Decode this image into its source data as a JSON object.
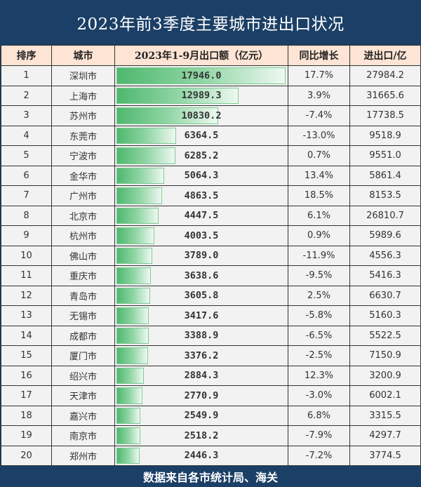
{
  "title": "2023年前3季度主要城市进出口状况",
  "footer": "数据来自各市统计局、海关",
  "colors": {
    "title_bg": "#1b3f66",
    "header_bg": "#fde4d4",
    "bar": "#4fb86e"
  },
  "chart_data": {
    "type": "table",
    "headers": [
      "排序",
      "城市",
      "2023年1-9月出口额（亿元）",
      "同比增长",
      "进出口/亿"
    ],
    "rows": [
      [
        "1",
        "深圳市",
        17946.0,
        "17.7%",
        "27984.2"
      ],
      [
        "2",
        "上海市",
        12989.3,
        "3.9%",
        "31665.6"
      ],
      [
        "3",
        "苏州市",
        10830.2,
        "-7.4%",
        "17738.5"
      ],
      [
        "4",
        "东莞市",
        6364.5,
        "-13.0%",
        "9518.9"
      ],
      [
        "5",
        "宁波市",
        6285.2,
        "0.7%",
        "9551.0"
      ],
      [
        "6",
        "金华市",
        5064.3,
        "13.4%",
        "5861.4"
      ],
      [
        "7",
        "广州市",
        4863.5,
        "18.5%",
        "8153.5"
      ],
      [
        "8",
        "北京市",
        4447.5,
        "6.1%",
        "26810.7"
      ],
      [
        "9",
        "杭州市",
        4003.5,
        "0.9%",
        "5989.6"
      ],
      [
        "10",
        "佛山市",
        3789.0,
        "-11.9%",
        "4556.3"
      ],
      [
        "11",
        "重庆市",
        3638.6,
        "-9.5%",
        "5416.3"
      ],
      [
        "12",
        "青岛市",
        3605.8,
        "2.5%",
        "6630.7"
      ],
      [
        "13",
        "无锡市",
        3417.6,
        "-5.8%",
        "5160.3"
      ],
      [
        "14",
        "成都市",
        3388.9,
        "-6.5%",
        "5522.5"
      ],
      [
        "15",
        "厦门市",
        3376.2,
        "-2.5%",
        "7150.9"
      ],
      [
        "16",
        "绍兴市",
        2884.3,
        "12.3%",
        "3200.9"
      ],
      [
        "17",
        "天津市",
        2770.9,
        "-3.0%",
        "6002.1"
      ],
      [
        "18",
        "嘉兴市",
        2549.9,
        "6.8%",
        "3315.5"
      ],
      [
        "19",
        "南京市",
        2518.2,
        "-7.9%",
        "4297.7"
      ],
      [
        "20",
        "郑州市",
        2446.3,
        "-7.2%",
        "3774.5"
      ]
    ]
  }
}
